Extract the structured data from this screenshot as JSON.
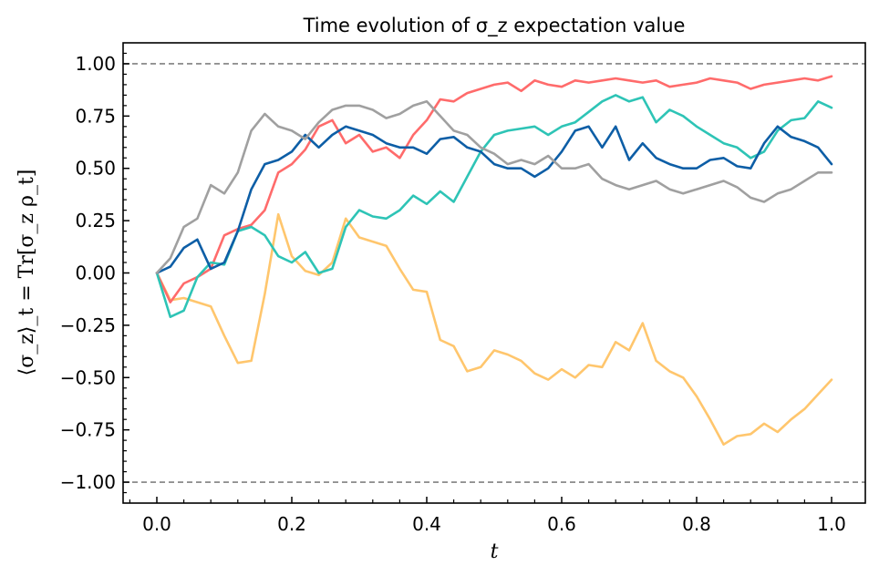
{
  "chart_data": {
    "type": "line",
    "title": "Time evolution of σ_z expectation value",
    "xlabel": "t",
    "ylabel": "⟨σ_z⟩_t = Tr[σ_z ρ_t]",
    "xlim": [
      -0.05,
      1.05
    ],
    "ylim": [
      -1.1,
      1.1
    ],
    "xticks": [
      0.0,
      0.2,
      0.4,
      0.6,
      0.8,
      1.0
    ],
    "xtick_labels": [
      "0.0",
      "0.2",
      "0.4",
      "0.6",
      "0.8",
      "1.0"
    ],
    "yticks": [
      1.0,
      0.75,
      0.5,
      0.25,
      0.0,
      -0.25,
      -0.5,
      -0.75,
      -1.0
    ],
    "ytick_labels": [
      "1.00",
      "0.75",
      "0.50",
      "0.25",
      "0.00",
      "−0.25",
      "−0.50",
      "−0.75",
      "−1.00"
    ],
    "reference_lines": [
      1.0,
      -1.0
    ],
    "grid": false,
    "series": [
      {
        "color": "#ffc66d",
        "x": [
          0,
          0.02,
          0.04,
          0.06,
          0.08,
          0.1,
          0.12,
          0.14,
          0.16,
          0.18,
          0.2,
          0.22,
          0.24,
          0.26,
          0.28,
          0.3,
          0.32,
          0.34,
          0.36,
          0.38,
          0.4,
          0.42,
          0.44,
          0.46,
          0.48,
          0.5,
          0.52,
          0.54,
          0.56,
          0.58,
          0.6,
          0.62,
          0.64,
          0.66,
          0.68,
          0.7,
          0.72,
          0.74,
          0.76,
          0.78,
          0.8,
          0.82,
          0.84,
          0.86,
          0.88,
          0.9,
          0.92,
          0.94,
          0.96,
          0.98,
          1.0
        ],
        "values": [
          0,
          -0.13,
          -0.12,
          -0.14,
          -0.16,
          -0.3,
          -0.43,
          -0.42,
          -0.1,
          0.28,
          0.08,
          0.01,
          -0.01,
          0.05,
          0.26,
          0.17,
          0.15,
          0.13,
          0.02,
          -0.08,
          -0.09,
          -0.32,
          -0.35,
          -0.47,
          -0.45,
          -0.37,
          -0.39,
          -0.42,
          -0.48,
          -0.51,
          -0.46,
          -0.5,
          -0.44,
          -0.45,
          -0.33,
          -0.37,
          -0.24,
          -0.42,
          -0.47,
          -0.5,
          -0.59,
          -0.7,
          -0.82,
          -0.78,
          -0.77,
          -0.72,
          -0.76,
          -0.7,
          -0.65,
          -0.58,
          -0.51
        ]
      },
      {
        "color": "#ff6b6b",
        "x": [
          0,
          0.02,
          0.04,
          0.06,
          0.08,
          0.1,
          0.12,
          0.14,
          0.16,
          0.18,
          0.2,
          0.22,
          0.24,
          0.26,
          0.28,
          0.3,
          0.32,
          0.34,
          0.36,
          0.38,
          0.4,
          0.42,
          0.44,
          0.46,
          0.48,
          0.5,
          0.52,
          0.54,
          0.56,
          0.58,
          0.6,
          0.62,
          0.64,
          0.66,
          0.68,
          0.7,
          0.72,
          0.74,
          0.76,
          0.78,
          0.8,
          0.82,
          0.84,
          0.86,
          0.88,
          0.9,
          0.92,
          0.94,
          0.96,
          0.98,
          1.0
        ],
        "values": [
          0,
          -0.14,
          -0.05,
          -0.02,
          0.02,
          0.18,
          0.21,
          0.23,
          0.3,
          0.48,
          0.52,
          0.59,
          0.7,
          0.73,
          0.62,
          0.66,
          0.58,
          0.6,
          0.55,
          0.66,
          0.73,
          0.83,
          0.82,
          0.86,
          0.88,
          0.9,
          0.91,
          0.87,
          0.92,
          0.9,
          0.89,
          0.92,
          0.91,
          0.92,
          0.93,
          0.92,
          0.91,
          0.92,
          0.89,
          0.9,
          0.91,
          0.93,
          0.92,
          0.91,
          0.88,
          0.9,
          0.91,
          0.92,
          0.93,
          0.92,
          0.94
        ]
      },
      {
        "color": "#2ec4b6",
        "x": [
          0,
          0.02,
          0.04,
          0.06,
          0.08,
          0.1,
          0.12,
          0.14,
          0.16,
          0.18,
          0.2,
          0.22,
          0.24,
          0.26,
          0.28,
          0.3,
          0.32,
          0.34,
          0.36,
          0.38,
          0.4,
          0.42,
          0.44,
          0.46,
          0.48,
          0.5,
          0.52,
          0.54,
          0.56,
          0.58,
          0.6,
          0.62,
          0.64,
          0.66,
          0.68,
          0.7,
          0.72,
          0.74,
          0.76,
          0.78,
          0.8,
          0.82,
          0.84,
          0.86,
          0.88,
          0.9,
          0.92,
          0.94,
          0.96,
          0.98,
          1.0
        ],
        "values": [
          0,
          -0.21,
          -0.18,
          -0.02,
          0.05,
          0.04,
          0.2,
          0.22,
          0.18,
          0.08,
          0.05,
          0.1,
          0.0,
          0.02,
          0.22,
          0.3,
          0.27,
          0.26,
          0.3,
          0.37,
          0.33,
          0.39,
          0.34,
          0.46,
          0.58,
          0.66,
          0.68,
          0.69,
          0.7,
          0.66,
          0.7,
          0.72,
          0.77,
          0.82,
          0.85,
          0.82,
          0.84,
          0.72,
          0.78,
          0.75,
          0.7,
          0.66,
          0.62,
          0.6,
          0.55,
          0.58,
          0.68,
          0.73,
          0.74,
          0.82,
          0.79
        ]
      },
      {
        "color": "#0d5ea6",
        "x": [
          0,
          0.02,
          0.04,
          0.06,
          0.08,
          0.1,
          0.12,
          0.14,
          0.16,
          0.18,
          0.2,
          0.22,
          0.24,
          0.26,
          0.28,
          0.3,
          0.32,
          0.34,
          0.36,
          0.38,
          0.4,
          0.42,
          0.44,
          0.46,
          0.48,
          0.5,
          0.52,
          0.54,
          0.56,
          0.58,
          0.6,
          0.62,
          0.64,
          0.66,
          0.68,
          0.7,
          0.72,
          0.74,
          0.76,
          0.78,
          0.8,
          0.82,
          0.84,
          0.86,
          0.88,
          0.9,
          0.92,
          0.94,
          0.96,
          0.98,
          1.0
        ],
        "values": [
          0,
          0.03,
          0.12,
          0.16,
          0.02,
          0.05,
          0.2,
          0.4,
          0.52,
          0.54,
          0.58,
          0.66,
          0.6,
          0.66,
          0.7,
          0.68,
          0.66,
          0.62,
          0.6,
          0.6,
          0.57,
          0.64,
          0.65,
          0.6,
          0.58,
          0.52,
          0.5,
          0.5,
          0.46,
          0.5,
          0.58,
          0.68,
          0.7,
          0.6,
          0.7,
          0.54,
          0.62,
          0.55,
          0.52,
          0.5,
          0.5,
          0.54,
          0.55,
          0.51,
          0.5,
          0.62,
          0.7,
          0.65,
          0.63,
          0.6,
          0.52
        ]
      },
      {
        "color": "#a0a0a0",
        "x": [
          0,
          0.02,
          0.04,
          0.06,
          0.08,
          0.1,
          0.12,
          0.14,
          0.16,
          0.18,
          0.2,
          0.22,
          0.24,
          0.26,
          0.28,
          0.3,
          0.32,
          0.34,
          0.36,
          0.38,
          0.4,
          0.42,
          0.44,
          0.46,
          0.48,
          0.5,
          0.52,
          0.54,
          0.56,
          0.58,
          0.6,
          0.62,
          0.64,
          0.66,
          0.68,
          0.7,
          0.72,
          0.74,
          0.76,
          0.78,
          0.8,
          0.82,
          0.84,
          0.86,
          0.88,
          0.9,
          0.92,
          0.94,
          0.96,
          0.98,
          1.0
        ],
        "values": [
          0,
          0.07,
          0.22,
          0.26,
          0.42,
          0.38,
          0.48,
          0.68,
          0.76,
          0.7,
          0.68,
          0.64,
          0.72,
          0.78,
          0.8,
          0.8,
          0.78,
          0.74,
          0.76,
          0.8,
          0.82,
          0.75,
          0.68,
          0.66,
          0.6,
          0.57,
          0.52,
          0.54,
          0.52,
          0.56,
          0.5,
          0.5,
          0.52,
          0.45,
          0.42,
          0.4,
          0.42,
          0.44,
          0.4,
          0.38,
          0.4,
          0.42,
          0.44,
          0.41,
          0.36,
          0.34,
          0.38,
          0.4,
          0.44,
          0.48,
          0.48
        ]
      }
    ]
  }
}
